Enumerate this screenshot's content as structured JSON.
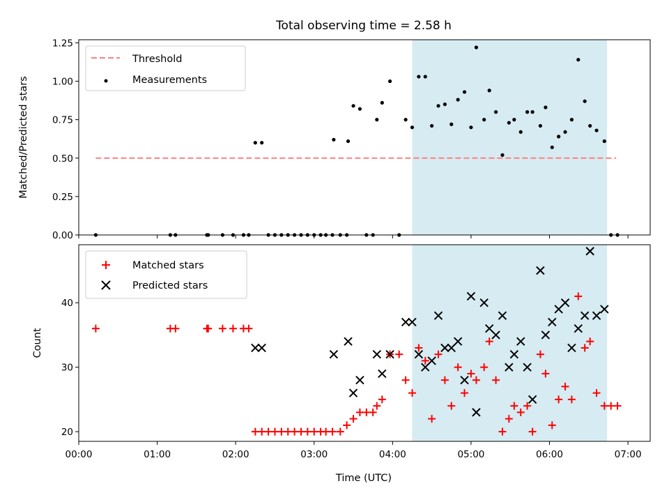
{
  "chart_data": [
    {
      "type": "scatter",
      "title": "Total observing time = 2.58 h",
      "ylabel": "Matched/Predicted stars",
      "xlabel": "",
      "xlim": [
        "00:00",
        "07:17"
      ],
      "ylim": [
        0,
        1.27
      ],
      "yticks": [
        "0.00",
        "0.25",
        "0.50",
        "0.75",
        "1.00",
        "1.25"
      ],
      "grid": false,
      "legend": "top-left",
      "shaded_span": [
        "04:15",
        "06:44"
      ],
      "threshold": {
        "name": "Threshold",
        "y": 0.5,
        "x": [
          "00:13",
          "06:51"
        ],
        "color": "#ff7f7f",
        "style": "dashed"
      },
      "series": [
        {
          "name": "Measurements",
          "color": "#000000",
          "marker": "dot",
          "points": [
            [
              "00:13",
              0
            ],
            [
              "01:10",
              0
            ],
            [
              "01:14",
              0
            ],
            [
              "01:38",
              0
            ],
            [
              "01:39",
              0
            ],
            [
              "01:50",
              0
            ],
            [
              "01:58",
              0
            ],
            [
              "02:06",
              0
            ],
            [
              "02:10",
              0
            ],
            [
              "02:15",
              0.6
            ],
            [
              "02:20",
              0.6
            ],
            [
              "02:25",
              0
            ],
            [
              "02:30",
              0
            ],
            [
              "02:35",
              0
            ],
            [
              "02:40",
              0
            ],
            [
              "02:45",
              0
            ],
            [
              "02:50",
              0
            ],
            [
              "02:55",
              0
            ],
            [
              "03:00",
              0
            ],
            [
              "03:05",
              0
            ],
            [
              "03:09",
              0
            ],
            [
              "03:14",
              0
            ],
            [
              "03:15",
              0.62
            ],
            [
              "03:20",
              0
            ],
            [
              "03:25",
              0
            ],
            [
              "03:26",
              0.61
            ],
            [
              "03:30",
              0.84
            ],
            [
              "03:35",
              0.82
            ],
            [
              "03:40",
              0
            ],
            [
              "03:45",
              0
            ],
            [
              "03:48",
              0.75
            ],
            [
              "03:52",
              0.86
            ],
            [
              "03:58",
              1.0
            ],
            [
              "04:05",
              0
            ],
            [
              "04:10",
              0.75
            ],
            [
              "04:15",
              0.7
            ],
            [
              "04:20",
              1.03
            ],
            [
              "04:25",
              1.03
            ],
            [
              "04:30",
              0.71
            ],
            [
              "04:35",
              0.84
            ],
            [
              "04:40",
              0.85
            ],
            [
              "04:45",
              0.72
            ],
            [
              "04:50",
              0.88
            ],
            [
              "04:55",
              0.93
            ],
            [
              "05:00",
              0.7
            ],
            [
              "05:04",
              1.22
            ],
            [
              "05:10",
              0.75
            ],
            [
              "05:14",
              0.94
            ],
            [
              "05:19",
              0.8
            ],
            [
              "05:24",
              0.52
            ],
            [
              "05:29",
              0.73
            ],
            [
              "05:33",
              0.75
            ],
            [
              "05:38",
              0.67
            ],
            [
              "05:43",
              0.8
            ],
            [
              "05:47",
              0.8
            ],
            [
              "05:53",
              0.71
            ],
            [
              "05:57",
              0.83
            ],
            [
              "06:02",
              0.57
            ],
            [
              "06:07",
              0.64
            ],
            [
              "06:12",
              0.67
            ],
            [
              "06:17",
              0.75
            ],
            [
              "06:22",
              1.14
            ],
            [
              "06:27",
              0.87
            ],
            [
              "06:31",
              0.71
            ],
            [
              "06:36",
              0.68
            ],
            [
              "06:42",
              0.61
            ],
            [
              "06:47",
              0
            ],
            [
              "06:52",
              0
            ]
          ]
        }
      ]
    },
    {
      "type": "scatter",
      "title": "",
      "ylabel": "Count",
      "xlabel": "Time (UTC)",
      "xlim": [
        "00:00",
        "07:17"
      ],
      "ylim": [
        18.5,
        49.0
      ],
      "yticks": [
        "20",
        "30",
        "40"
      ],
      "xticks": [
        "00:00",
        "01:00",
        "02:00",
        "03:00",
        "04:00",
        "05:00",
        "06:00",
        "07:00"
      ],
      "grid": false,
      "legend": "top-left",
      "shaded_span": [
        "04:15",
        "06:44"
      ],
      "series": [
        {
          "name": "Matched stars",
          "color": "#ff0000",
          "marker": "plus",
          "points": [
            [
              "00:13",
              36
            ],
            [
              "01:10",
              36
            ],
            [
              "01:14",
              36
            ],
            [
              "01:38",
              36
            ],
            [
              "01:39",
              36
            ],
            [
              "01:50",
              36
            ],
            [
              "01:58",
              36
            ],
            [
              "02:06",
              36
            ],
            [
              "02:10",
              36
            ],
            [
              "02:15",
              20
            ],
            [
              "02:20",
              20
            ],
            [
              "02:25",
              20
            ],
            [
              "02:30",
              20
            ],
            [
              "02:35",
              20
            ],
            [
              "02:40",
              20
            ],
            [
              "02:45",
              20
            ],
            [
              "02:50",
              20
            ],
            [
              "02:55",
              20
            ],
            [
              "03:00",
              20
            ],
            [
              "03:05",
              20
            ],
            [
              "03:09",
              20
            ],
            [
              "03:14",
              20
            ],
            [
              "03:20",
              20
            ],
            [
              "03:25",
              21
            ],
            [
              "03:30",
              22
            ],
            [
              "03:35",
              23
            ],
            [
              "03:40",
              23
            ],
            [
              "03:45",
              23
            ],
            [
              "03:48",
              24
            ],
            [
              "03:52",
              25
            ],
            [
              "03:58",
              32
            ],
            [
              "04:05",
              32
            ],
            [
              "04:10",
              28
            ],
            [
              "04:15",
              26
            ],
            [
              "04:20",
              33
            ],
            [
              "04:25",
              31
            ],
            [
              "04:30",
              22
            ],
            [
              "04:35",
              32
            ],
            [
              "04:40",
              28
            ],
            [
              "04:45",
              24
            ],
            [
              "04:50",
              30
            ],
            [
              "04:55",
              26
            ],
            [
              "05:00",
              29
            ],
            [
              "05:04",
              28
            ],
            [
              "05:10",
              30
            ],
            [
              "05:14",
              34
            ],
            [
              "05:19",
              28
            ],
            [
              "05:24",
              20
            ],
            [
              "05:29",
              22
            ],
            [
              "05:33",
              24
            ],
            [
              "05:38",
              23
            ],
            [
              "05:43",
              24
            ],
            [
              "05:47",
              20
            ],
            [
              "05:53",
              32
            ],
            [
              "05:57",
              29
            ],
            [
              "06:02",
              21
            ],
            [
              "06:07",
              25
            ],
            [
              "06:12",
              27
            ],
            [
              "06:17",
              25
            ],
            [
              "06:22",
              41
            ],
            [
              "06:27",
              33
            ],
            [
              "06:31",
              34
            ],
            [
              "06:36",
              26
            ],
            [
              "06:42",
              24
            ],
            [
              "06:47",
              24
            ],
            [
              "06:52",
              24
            ]
          ]
        },
        {
          "name": "Predicted stars",
          "color": "#000000",
          "marker": "x",
          "points": [
            [
              "02:15",
              33
            ],
            [
              "02:20",
              33
            ],
            [
              "03:15",
              32
            ],
            [
              "03:26",
              34
            ],
            [
              "03:30",
              26
            ],
            [
              "03:35",
              28
            ],
            [
              "03:48",
              32
            ],
            [
              "03:52",
              29
            ],
            [
              "03:58",
              32
            ],
            [
              "04:10",
              37
            ],
            [
              "04:15",
              37
            ],
            [
              "04:20",
              32
            ],
            [
              "04:25",
              30
            ],
            [
              "04:30",
              31
            ],
            [
              "04:35",
              38
            ],
            [
              "04:40",
              33
            ],
            [
              "04:45",
              33
            ],
            [
              "04:50",
              34
            ],
            [
              "04:55",
              28
            ],
            [
              "05:00",
              41
            ],
            [
              "05:04",
              23
            ],
            [
              "05:10",
              40
            ],
            [
              "05:14",
              36
            ],
            [
              "05:19",
              35
            ],
            [
              "05:24",
              38
            ],
            [
              "05:29",
              30
            ],
            [
              "05:33",
              32
            ],
            [
              "05:38",
              34
            ],
            [
              "05:43",
              30
            ],
            [
              "05:47",
              25
            ],
            [
              "05:53",
              45
            ],
            [
              "05:57",
              35
            ],
            [
              "06:02",
              37
            ],
            [
              "06:07",
              39
            ],
            [
              "06:12",
              40
            ],
            [
              "06:17",
              33
            ],
            [
              "06:22",
              36
            ],
            [
              "06:27",
              38
            ],
            [
              "06:31",
              48
            ],
            [
              "06:36",
              38
            ],
            [
              "06:42",
              39
            ]
          ]
        }
      ]
    }
  ]
}
